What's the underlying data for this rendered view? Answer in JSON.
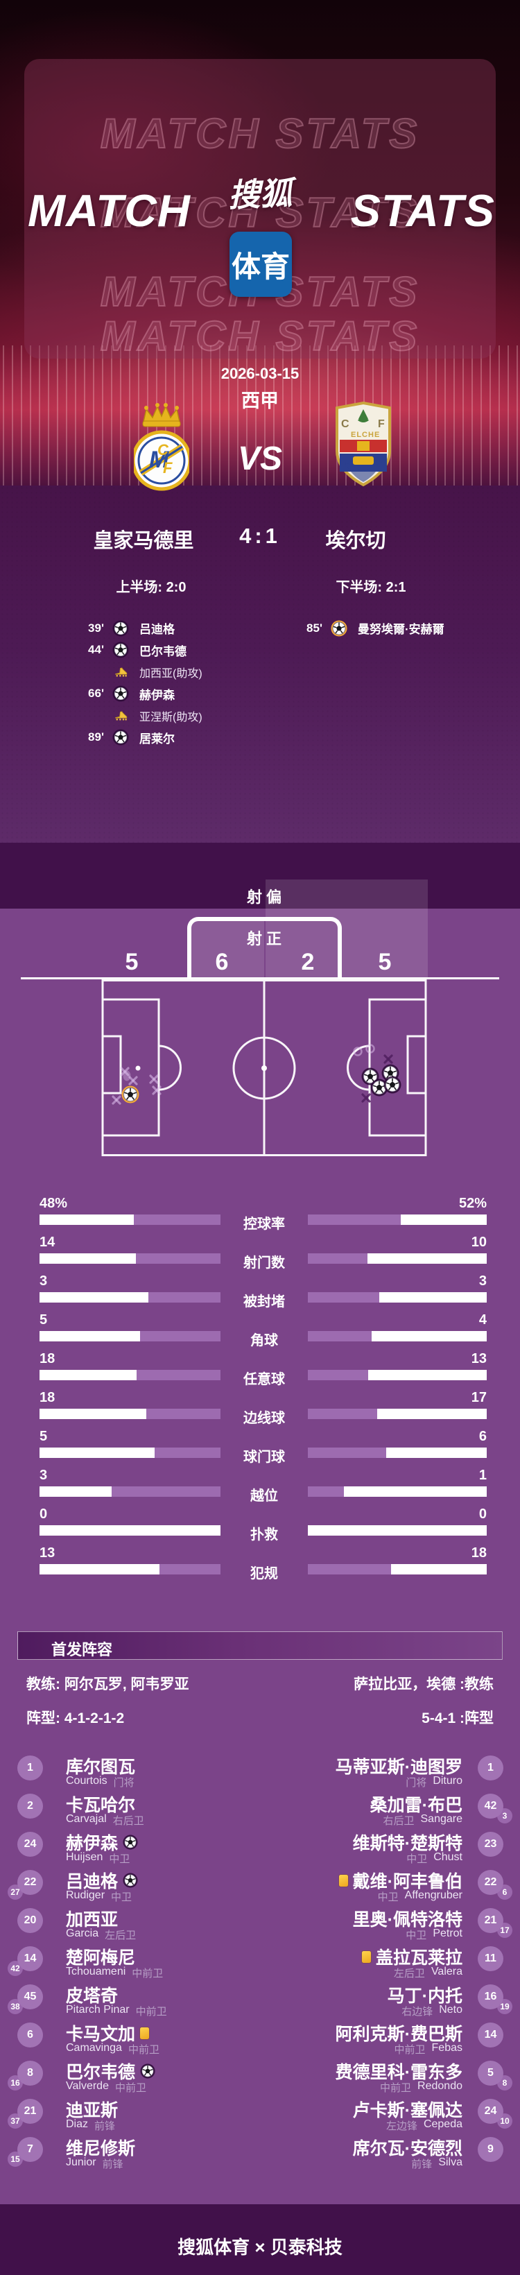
{
  "hero": {
    "watermark_text": "MATCH STATS",
    "title_left": "MATCH",
    "title_right": "STATS",
    "logo": {
      "script": "搜狐",
      "box": "体育",
      "box_color": "#1565ad"
    }
  },
  "match": {
    "date": "2026-03-15",
    "league": "西甲",
    "home_name": "皇家马德里",
    "away_name": "埃尔切",
    "score": "4:1",
    "vs_label": "VS",
    "first_half": "上半场: 2:0",
    "second_half": "下半场: 2:1"
  },
  "events": {
    "home": [
      {
        "minute": "39'",
        "type": "goal",
        "player": "吕迪格"
      },
      {
        "minute": "44'",
        "type": "goal",
        "player": "巴尔韦德"
      },
      {
        "minute": "",
        "type": "assist",
        "player": "加西亚(助攻)"
      },
      {
        "minute": "66'",
        "type": "goal",
        "player": "赫伊森"
      },
      {
        "minute": "",
        "type": "assist",
        "player": "亚涅斯(助攻)"
      },
      {
        "minute": "89'",
        "type": "goal",
        "player": "居莱尔"
      }
    ],
    "away": [
      {
        "minute": "85'",
        "type": "goal_ringed",
        "player": "曼努埃爾·安赫爾"
      }
    ]
  },
  "shot_zones": {
    "off_label": "射 偏",
    "on_label": "射 正",
    "home_off": "5",
    "home_on": "6",
    "away_on": "2",
    "away_off": "5"
  },
  "stats": {
    "rows": [
      {
        "label": "控球率",
        "left": "48%",
        "right": "52%",
        "lv": 48,
        "rv": 52,
        "pct": true
      },
      {
        "label": "射门数",
        "left": "14",
        "right": "10",
        "lv": 14,
        "rv": 10
      },
      {
        "label": "被封堵",
        "left": "3",
        "right": "3",
        "lv": 3,
        "rv": 3
      },
      {
        "label": "角球",
        "left": "5",
        "right": "4",
        "lv": 5,
        "rv": 4
      },
      {
        "label": "任意球",
        "left": "18",
        "right": "13",
        "lv": 18,
        "rv": 13
      },
      {
        "label": "边线球",
        "left": "18",
        "right": "17",
        "lv": 18,
        "rv": 17
      },
      {
        "label": "球门球",
        "left": "5",
        "right": "6",
        "lv": 5,
        "rv": 6
      },
      {
        "label": "越位",
        "left": "3",
        "right": "1",
        "lv": 3,
        "rv": 1
      },
      {
        "label": "扑救",
        "left": "0",
        "right": "0",
        "lv": 0,
        "rv": 0
      },
      {
        "label": "犯规",
        "left": "13",
        "right": "18",
        "lv": 13,
        "rv": 18
      }
    ]
  },
  "lineups": {
    "section_title": "首发阵容",
    "home": {
      "coach": "教练: 阿尔瓦罗, 阿韦罗亚",
      "formation": "阵型: 4-1-2-1-2",
      "players": [
        {
          "num": "1",
          "sub": "",
          "name": "库尔图瓦",
          "latin": "Courtois",
          "pos": "门将"
        },
        {
          "num": "2",
          "sub": "",
          "name": "卡瓦哈尔",
          "latin": "Carvajal",
          "pos": "右后卫"
        },
        {
          "num": "24",
          "sub": "",
          "name": "赫伊森",
          "latin": "Huijsen",
          "pos": "中卫",
          "goal": true
        },
        {
          "num": "22",
          "sub": "27",
          "name": "吕迪格",
          "latin": "Rudiger",
          "pos": "中卫",
          "goal": true
        },
        {
          "num": "20",
          "sub": "",
          "name": "加西亚",
          "latin": "Garcia",
          "pos": "左后卫"
        },
        {
          "num": "14",
          "sub": "42",
          "name": "楚阿梅尼",
          "latin": "Tchouameni",
          "pos": "中前卫"
        },
        {
          "num": "45",
          "sub": "38",
          "name": "皮塔奇",
          "latin": "Pitarch Pinar",
          "pos": "中前卫"
        },
        {
          "num": "6",
          "sub": "",
          "name": "卡马文加",
          "latin": "Camavinga",
          "pos": "中前卫",
          "card": true
        },
        {
          "num": "8",
          "sub": "16",
          "name": "巴尔韦德",
          "latin": "Valverde",
          "pos": "中前卫",
          "goal": true
        },
        {
          "num": "21",
          "sub": "37",
          "name": "迪亚斯",
          "latin": "Diaz",
          "pos": "前锋"
        },
        {
          "num": "7",
          "sub": "15",
          "name": "维尼修斯",
          "latin": "Junior",
          "pos": "前锋"
        }
      ]
    },
    "away": {
      "coach": "萨拉比亚，埃德 :教练",
      "formation": "5-4-1 :阵型",
      "players": [
        {
          "num": "1",
          "sub": "",
          "name": "马蒂亚斯·迪图罗",
          "latin": "Dituro",
          "pos": "门将"
        },
        {
          "num": "42",
          "sub": "3",
          "name": "桑加雷·布巴",
          "latin": "Sangare",
          "pos": "右后卫"
        },
        {
          "num": "23",
          "sub": "",
          "name": "维斯特·楚斯特",
          "latin": "Chust",
          "pos": "中卫"
        },
        {
          "num": "22",
          "sub": "6",
          "name": "戴维·阿丰鲁伯",
          "latin": "Affengruber",
          "pos": "中卫",
          "card": true
        },
        {
          "num": "21",
          "sub": "17",
          "name": "里奥·佩特洛特",
          "latin": "Petrot",
          "pos": "中卫"
        },
        {
          "num": "11",
          "sub": "",
          "name": "盖拉瓦莱拉",
          "latin": "Valera",
          "pos": "左后卫",
          "card": true
        },
        {
          "num": "16",
          "sub": "19",
          "name": "马丁·内托",
          "latin": "Neto",
          "pos": "右边锋"
        },
        {
          "num": "14",
          "sub": "",
          "name": "阿利克斯·费巴斯",
          "latin": "Febas",
          "pos": "中前卫"
        },
        {
          "num": "5",
          "sub": "8",
          "name": "费德里科·雷东多",
          "latin": "Redondo",
          "pos": "中前卫"
        },
        {
          "num": "24",
          "sub": "10",
          "name": "卢卡斯·塞佩达",
          "latin": "Cepeda",
          "pos": "左边锋"
        },
        {
          "num": "9",
          "sub": "",
          "name": "席尔瓦·安德烈",
          "latin": "Silva",
          "pos": "前锋"
        }
      ]
    }
  },
  "footer": {
    "text": "搜狐体育 × 贝泰科技"
  },
  "chart_data": [
    {
      "type": "bar",
      "title": "比赛数据对比",
      "categories": [
        "控球率",
        "射门数",
        "被封堵",
        "角球",
        "任意球",
        "边线球",
        "球门球",
        "越位",
        "扑救",
        "犯规"
      ],
      "series": [
        {
          "name": "皇家马德里",
          "values": [
            48,
            14,
            3,
            5,
            18,
            18,
            5,
            3,
            0,
            13
          ]
        },
        {
          "name": "埃尔切",
          "values": [
            52,
            10,
            3,
            4,
            13,
            17,
            6,
            1,
            0,
            18
          ]
        }
      ],
      "legend_position": "none",
      "grid": false
    },
    {
      "type": "scatter",
      "title": "射门分布(射偏/射正)",
      "zones": {
        "home_off": 5,
        "home_on": 6,
        "away_on": 2,
        "away_off": 5
      },
      "markers": [
        {
          "team": "away",
          "kind": "goal_ringed",
          "x": 188,
          "y": 1578
        },
        {
          "team": "away",
          "kind": "miss_x",
          "x": 180,
          "y": 1545
        },
        {
          "team": "away",
          "kind": "miss_x",
          "x": 192,
          "y": 1558
        },
        {
          "team": "away",
          "kind": "miss_x",
          "x": 222,
          "y": 1556
        },
        {
          "team": "away",
          "kind": "miss_x",
          "x": 226,
          "y": 1572
        },
        {
          "team": "away",
          "kind": "miss_x",
          "x": 168,
          "y": 1586
        },
        {
          "team": "away",
          "kind": "blob",
          "x": 183,
          "y": 1551
        },
        {
          "team": "home",
          "kind": "goal",
          "x": 534,
          "y": 1552
        },
        {
          "team": "home",
          "kind": "goal",
          "x": 563,
          "y": 1547
        },
        {
          "team": "home",
          "kind": "goal",
          "x": 547,
          "y": 1568
        },
        {
          "team": "home",
          "kind": "goal",
          "x": 566,
          "y": 1564
        },
        {
          "team": "home",
          "kind": "miss_x_dark",
          "x": 560,
          "y": 1527
        },
        {
          "team": "home",
          "kind": "miss_x_dark",
          "x": 528,
          "y": 1583
        },
        {
          "team": "home",
          "kind": "circle",
          "x": 516,
          "y": 1516
        },
        {
          "team": "home",
          "kind": "circle",
          "x": 534,
          "y": 1512
        }
      ]
    }
  ]
}
